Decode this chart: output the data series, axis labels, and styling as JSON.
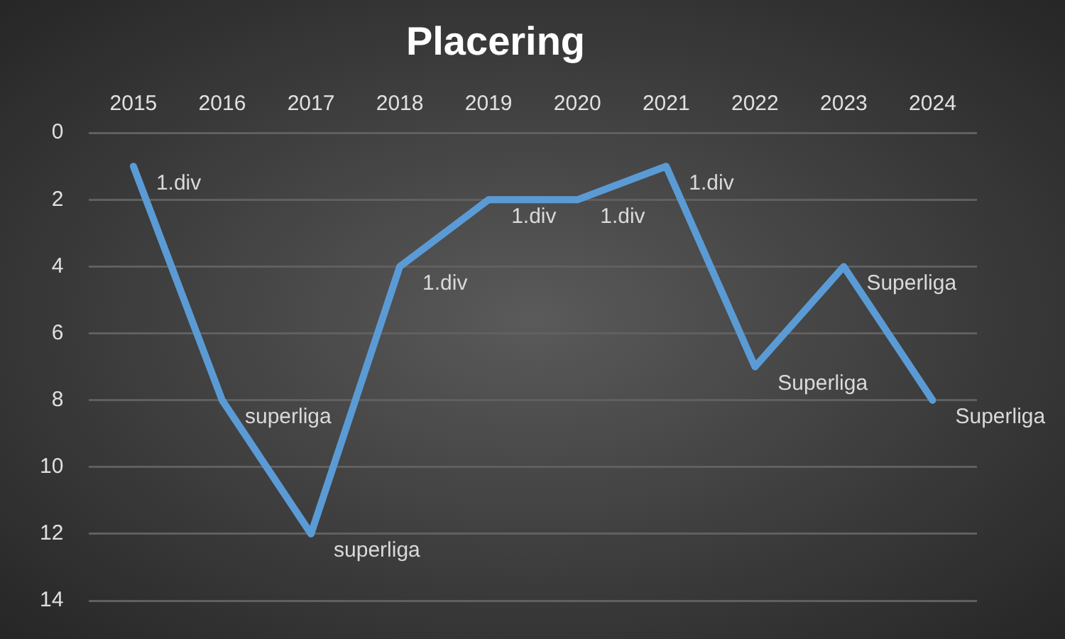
{
  "chart_data": {
    "type": "line",
    "title": "Placering",
    "categories": [
      "2015",
      "2016",
      "2017",
      "2018",
      "2019",
      "2020",
      "2021",
      "2022",
      "2023",
      "2024"
    ],
    "series": [
      {
        "color": "#5b9bd5",
        "values": [
          1,
          8,
          12,
          4,
          2,
          2,
          1,
          7,
          4,
          8
        ]
      }
    ],
    "annotations": [
      {
        "text": "1.div",
        "x": "2015",
        "y": 1
      },
      {
        "text": "superliga",
        "x": "2016",
        "y": 8
      },
      {
        "text": "superliga",
        "x": "2017",
        "y": 12
      },
      {
        "text": "1.div",
        "x": "2018",
        "y": 4
      },
      {
        "text": "1.div",
        "x": "2019",
        "y": 2
      },
      {
        "text": "1.div",
        "x": "2020",
        "y": 2
      },
      {
        "text": "1.div",
        "x": "2021",
        "y": 1
      },
      {
        "text": "Superliga",
        "x": "2022",
        "y": 7
      },
      {
        "text": "Superliga",
        "x": "2023",
        "y": 4
      },
      {
        "text": "Superliga",
        "x": "2024",
        "y": 8
      }
    ],
    "ylim": [
      14,
      0
    ],
    "yticks": [
      0,
      2,
      4,
      6,
      8,
      10,
      12,
      14
    ],
    "grid": "y",
    "legend": false,
    "marker": "none",
    "line_style": "solid"
  }
}
